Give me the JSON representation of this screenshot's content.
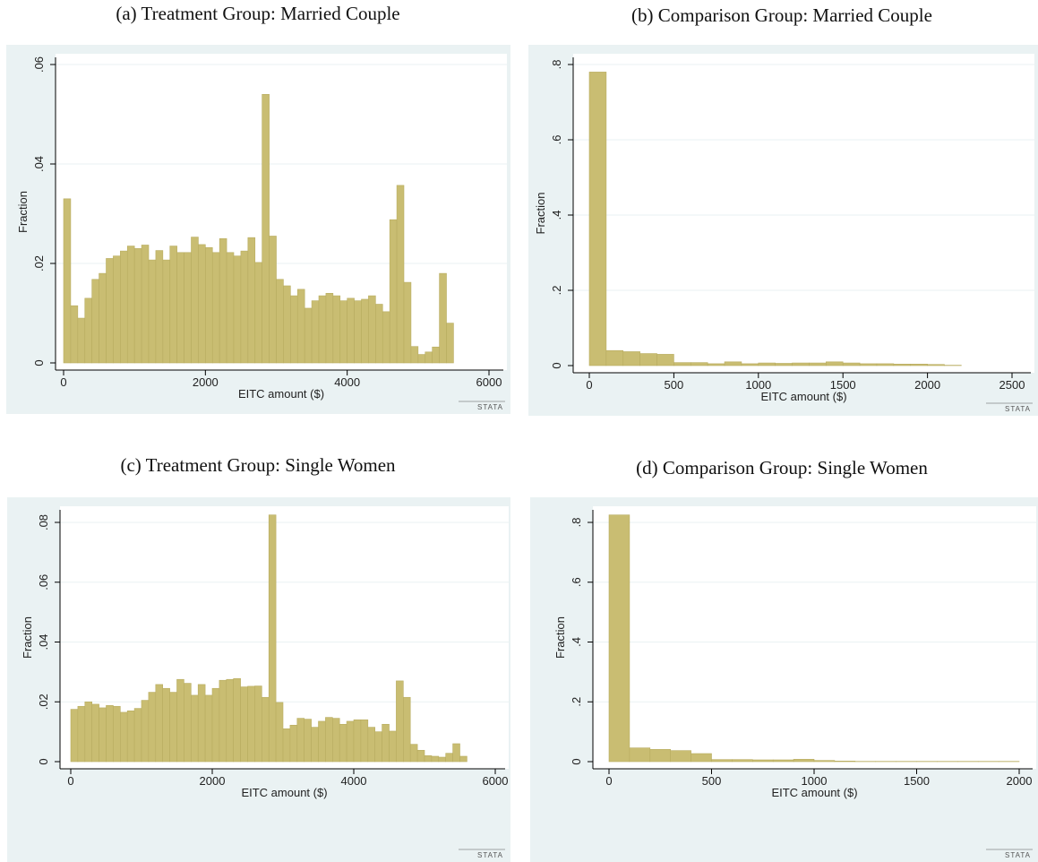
{
  "chart_data": [
    {
      "type": "histogram",
      "title": "(a) Treatment Group: Married Couple",
      "xlabel": "EITC amount ($)",
      "ylabel": "Fraction",
      "watermark": "STATA",
      "color": "#c9bd72",
      "grid": true,
      "bins": [
        0,
        100,
        200,
        300,
        400,
        500,
        600,
        700,
        800,
        900,
        1000,
        1100,
        1200,
        1300,
        1400,
        1500,
        1600,
        1700,
        1800,
        1900,
        2000,
        2100,
        2200,
        2300,
        2400,
        2500,
        2600,
        2700,
        2800,
        2900,
        3000,
        3100,
        3200,
        3300,
        3400,
        3500,
        3600,
        3700,
        3800,
        3900,
        4000,
        4100,
        4200,
        4300,
        4400,
        4500,
        4600,
        4700,
        4800,
        4900,
        5000,
        5100,
        5200,
        5300,
        5400,
        5500
      ],
      "values": [
        0.033,
        0.0115,
        0.009,
        0.013,
        0.0168,
        0.018,
        0.021,
        0.0215,
        0.0225,
        0.0235,
        0.023,
        0.0237,
        0.0207,
        0.0226,
        0.0207,
        0.0235,
        0.0222,
        0.0222,
        0.0253,
        0.0238,
        0.0232,
        0.0222,
        0.025,
        0.0222,
        0.0215,
        0.0225,
        0.0252,
        0.0202,
        0.054,
        0.0255,
        0.0168,
        0.0155,
        0.0135,
        0.0148,
        0.011,
        0.0125,
        0.0135,
        0.014,
        0.0135,
        0.0125,
        0.013,
        0.0125,
        0.0128,
        0.0135,
        0.0118,
        0.0103,
        0.0288,
        0.0357,
        0.0162,
        0.0033,
        0.0017,
        0.0022,
        0.0032,
        0.018,
        0.008
      ],
      "xlim": [
        0,
        6000
      ],
      "xticks": [
        0,
        2000,
        4000,
        6000
      ],
      "ylim": [
        0,
        0.06
      ],
      "yticks": [
        0,
        {
          "value": 0.02,
          "label": ".02"
        },
        {
          "value": 0.04,
          "label": ".04"
        },
        {
          "value": 0.06,
          "label": ".06"
        }
      ]
    },
    {
      "type": "histogram",
      "title": "(b) Comparison Group: Married Couple",
      "xlabel": "EITC amount ($)",
      "ylabel": "Fraction",
      "watermark": "STATA",
      "color": "#c9bd72",
      "grid": true,
      "bins": [
        0,
        100,
        200,
        300,
        400,
        500,
        600,
        700,
        800,
        900,
        1000,
        1100,
        1200,
        1300,
        1400,
        1500,
        1600,
        1700,
        1800,
        1900,
        2000,
        2100,
        2200
      ],
      "values": [
        0.78,
        0.04,
        0.037,
        0.032,
        0.03,
        0.008,
        0.008,
        0.005,
        0.01,
        0.005,
        0.007,
        0.006,
        0.007,
        0.007,
        0.01,
        0.007,
        0.005,
        0.005,
        0.004,
        0.004,
        0.003,
        0.001
      ],
      "xlim": [
        0,
        2500
      ],
      "xticks": [
        0,
        500,
        1000,
        1500,
        2000,
        2500
      ],
      "ylim": [
        0,
        0.8
      ],
      "yticks": [
        0,
        {
          "value": 0.2,
          "label": ".2"
        },
        {
          "value": 0.4,
          "label": ".4"
        },
        {
          "value": 0.6,
          "label": ".6"
        },
        {
          "value": 0.8,
          "label": ".8"
        }
      ]
    },
    {
      "type": "histogram",
      "title": "(c) Treatment Group: Single Women",
      "xlabel": "EITC amount ($)",
      "ylabel": "Fraction",
      "watermark": "STATA",
      "color": "#c9bd72",
      "grid": true,
      "bins": [
        0,
        100,
        200,
        300,
        400,
        500,
        600,
        700,
        800,
        900,
        1000,
        1100,
        1200,
        1300,
        1400,
        1500,
        1600,
        1700,
        1800,
        1900,
        2000,
        2100,
        2200,
        2300,
        2400,
        2500,
        2600,
        2700,
        2800,
        2900,
        3000,
        3100,
        3200,
        3300,
        3400,
        3500,
        3600,
        3700,
        3800,
        3900,
        4000,
        4100,
        4200,
        4300,
        4400,
        4500,
        4600,
        4700,
        4800,
        4900,
        5000,
        5100,
        5200,
        5300,
        5400,
        5500,
        5600
      ],
      "values": [
        0.0175,
        0.0185,
        0.02,
        0.0192,
        0.018,
        0.0188,
        0.0185,
        0.0165,
        0.017,
        0.0178,
        0.0205,
        0.0232,
        0.0258,
        0.0245,
        0.0232,
        0.0275,
        0.0262,
        0.0222,
        0.0258,
        0.0222,
        0.0245,
        0.0272,
        0.0275,
        0.0278,
        0.025,
        0.0252,
        0.0253,
        0.0215,
        0.0825,
        0.0198,
        0.011,
        0.0122,
        0.0145,
        0.0142,
        0.0115,
        0.0135,
        0.0148,
        0.0145,
        0.0125,
        0.0135,
        0.014,
        0.014,
        0.0115,
        0.01,
        0.0125,
        0.0102,
        0.027,
        0.0215,
        0.0058,
        0.0038,
        0.002,
        0.0018,
        0.0015,
        0.0028,
        0.006,
        0.0018
      ],
      "xlim": [
        0,
        6000
      ],
      "xticks": [
        0,
        2000,
        4000,
        6000
      ],
      "ylim": [
        0,
        0.08
      ],
      "yticks": [
        0,
        {
          "value": 0.02,
          "label": ".02"
        },
        {
          "value": 0.04,
          "label": ".04"
        },
        {
          "value": 0.06,
          "label": ".06"
        },
        {
          "value": 0.08,
          "label": ".08"
        }
      ]
    },
    {
      "type": "histogram",
      "title": "(d) Comparison Group: Single Women",
      "xlabel": "EITC amount ($)",
      "ylabel": "Fraction",
      "watermark": "STATA",
      "color": "#c9bd72",
      "grid": true,
      "bins": [
        0,
        100,
        200,
        300,
        400,
        500,
        600,
        700,
        800,
        900,
        1000,
        1100,
        1200,
        1300,
        1400,
        1500,
        1600,
        1700,
        1800,
        1900,
        2000
      ],
      "values": [
        0.825,
        0.046,
        0.041,
        0.037,
        0.027,
        0.007,
        0.007,
        0.006,
        0.006,
        0.008,
        0.004,
        0.002,
        0.001,
        0.001,
        0.001,
        0.001,
        0.001,
        0.001,
        0.001,
        0.001
      ],
      "xlim": [
        0,
        2000
      ],
      "xticks": [
        0,
        500,
        1000,
        1500,
        2000
      ],
      "ylim": [
        0,
        0.8
      ],
      "yticks": [
        0,
        {
          "value": 0.2,
          "label": ".2"
        },
        {
          "value": 0.4,
          "label": ".4"
        },
        {
          "value": 0.6,
          "label": ".6"
        },
        {
          "value": 0.8,
          "label": ".8"
        }
      ]
    }
  ]
}
